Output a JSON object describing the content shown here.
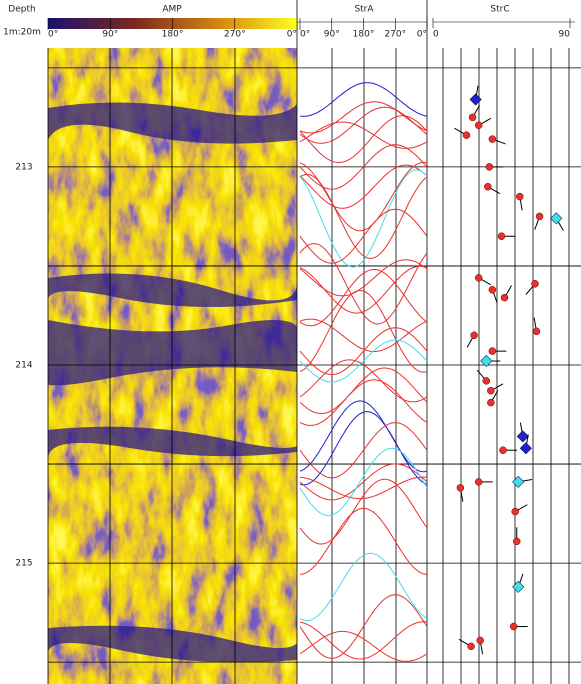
{
  "depth_track": {
    "title": "Depth",
    "scale": "1m:20m",
    "labels": [
      213,
      214,
      215
    ],
    "range": [
      212.4,
      215.61
    ]
  },
  "amp_track": {
    "title": "AMP",
    "axis_labels": [
      "0°",
      "90°",
      "180°",
      "270°",
      "0°"
    ]
  },
  "stra_track": {
    "title": "StrA",
    "axis_labels": [
      "0°",
      "90°",
      "180°",
      "270°",
      "0°"
    ]
  },
  "strc_track": {
    "title": "StrC",
    "axis_labels": [
      {
        "value": 0,
        "label": "0"
      },
      {
        "value": 90,
        "label": "90"
      }
    ],
    "xlim": [
      0,
      90
    ],
    "dips": [
      {
        "depth": 212.66,
        "dip": 28,
        "azimuth": 10,
        "color": "#2020d0"
      },
      {
        "depth": 212.75,
        "dip": 26,
        "azimuth": 30,
        "color": "#e8312f"
      },
      {
        "depth": 212.79,
        "dip": 30,
        "azimuth": 60,
        "color": "#e8312f"
      },
      {
        "depth": 212.84,
        "dip": 22,
        "azimuth": 300,
        "color": "#e8312f"
      },
      {
        "depth": 212.86,
        "dip": 39,
        "azimuth": 110,
        "color": "#e8312f"
      },
      {
        "depth": 213.0,
        "dip": 37,
        "azimuth": 90,
        "color": "#e8312f"
      },
      {
        "depth": 213.1,
        "dip": 36,
        "azimuth": 120,
        "color": "#e8312f"
      },
      {
        "depth": 213.15,
        "dip": 57,
        "azimuth": 170,
        "color": "#e8312f"
      },
      {
        "depth": 213.25,
        "dip": 70,
        "azimuth": 200,
        "color": "#e8312f"
      },
      {
        "depth": 213.26,
        "dip": 81,
        "azimuth": 150,
        "color": "#40e0e8"
      },
      {
        "depth": 213.35,
        "dip": 45,
        "azimuth": 90,
        "color": "#e8312f"
      },
      {
        "depth": 213.56,
        "dip": 30,
        "azimuth": 120,
        "color": "#e8312f"
      },
      {
        "depth": 213.59,
        "dip": 67,
        "azimuth": 220,
        "color": "#e8312f"
      },
      {
        "depth": 213.62,
        "dip": 39,
        "azimuth": 160,
        "color": "#e8312f"
      },
      {
        "depth": 213.66,
        "dip": 47,
        "azimuth": 30,
        "color": "#e8312f"
      },
      {
        "depth": 213.83,
        "dip": 68,
        "azimuth": 350,
        "color": "#e8312f"
      },
      {
        "depth": 213.85,
        "dip": 27,
        "azimuth": 210,
        "color": "#e8312f"
      },
      {
        "depth": 213.93,
        "dip": 39,
        "azimuth": 90,
        "color": "#e8312f"
      },
      {
        "depth": 213.98,
        "dip": 35,
        "azimuth": 90,
        "color": "#40e0e8"
      },
      {
        "depth": 214.08,
        "dip": 35,
        "azimuth": 320,
        "color": "#e8312f"
      },
      {
        "depth": 214.13,
        "dip": 38,
        "azimuth": 60,
        "color": "#e8312f"
      },
      {
        "depth": 214.19,
        "dip": 38,
        "azimuth": 30,
        "color": "#e8312f"
      },
      {
        "depth": 214.36,
        "dip": 59,
        "azimuth": 350,
        "color": "#2020d0"
      },
      {
        "depth": 214.42,
        "dip": 61,
        "azimuth": 10,
        "color": "#2020d0"
      },
      {
        "depth": 214.43,
        "dip": 46,
        "azimuth": 90,
        "color": "#e8312f"
      },
      {
        "depth": 214.59,
        "dip": 30,
        "azimuth": 90,
        "color": "#e8312f"
      },
      {
        "depth": 214.59,
        "dip": 56,
        "azimuth": 80,
        "color": "#40e0e8"
      },
      {
        "depth": 214.62,
        "dip": 18,
        "azimuth": 170,
        "color": "#e8312f"
      },
      {
        "depth": 214.74,
        "dip": 54,
        "azimuth": 60,
        "color": "#e8312f"
      },
      {
        "depth": 214.89,
        "dip": 55,
        "azimuth": 0,
        "color": "#e8312f"
      },
      {
        "depth": 215.12,
        "dip": 56,
        "azimuth": 20,
        "color": "#40e0e8"
      },
      {
        "depth": 215.32,
        "dip": 53,
        "azimuth": 90,
        "color": "#e8312f"
      },
      {
        "depth": 215.39,
        "dip": 31,
        "azimuth": 170,
        "color": "#e8312f"
      },
      {
        "depth": 215.42,
        "dip": 25,
        "azimuth": 300,
        "color": "#e8312f"
      }
    ]
  }
}
